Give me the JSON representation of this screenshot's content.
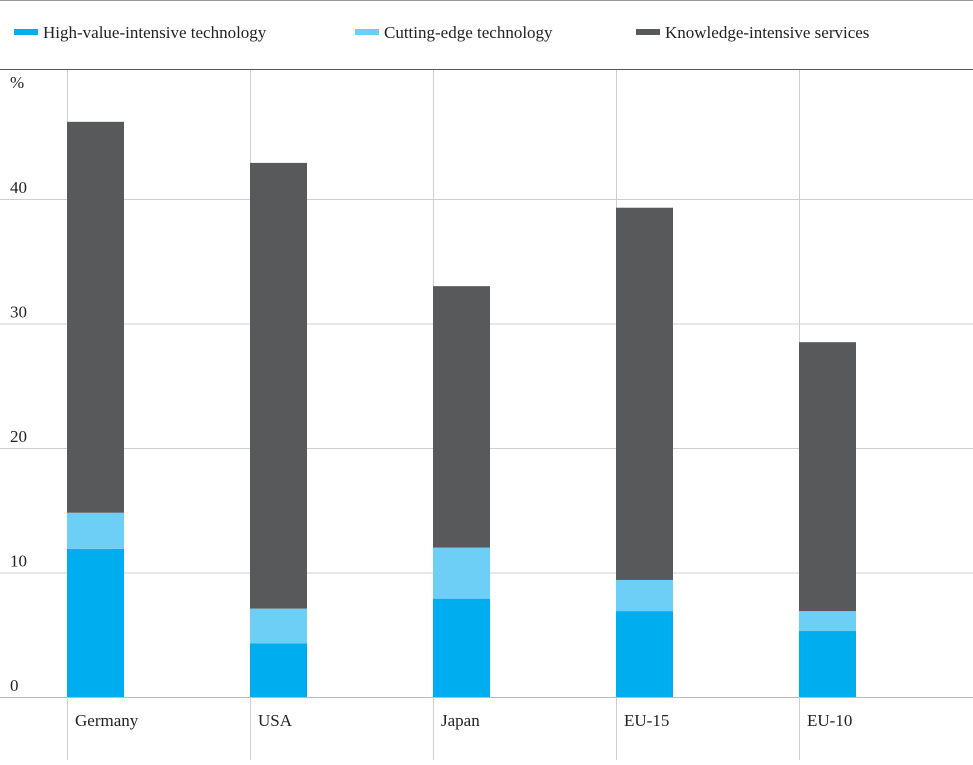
{
  "chart_data": {
    "type": "bar",
    "stacked": true,
    "y_unit_label": "%",
    "categories": [
      "Germany",
      "USA",
      "Japan",
      "EU-15",
      "EU-10"
    ],
    "series": [
      {
        "name": "High-value-intensive technology",
        "color": "#00aeef",
        "values": [
          11.9,
          4.3,
          7.9,
          6.9,
          5.3
        ]
      },
      {
        "name": "Cutting-edge technology",
        "color": "#6dcff6",
        "values": [
          2.9,
          2.8,
          4.1,
          2.5,
          1.6
        ]
      },
      {
        "name": "Knowledge-intensive services",
        "color": "#58595b",
        "values": [
          31.4,
          35.8,
          21.0,
          29.9,
          21.6
        ]
      }
    ],
    "ylim": [
      0,
      50
    ],
    "yticks": [
      0,
      10,
      20,
      30,
      40
    ],
    "grid": true,
    "legend_position": "top"
  }
}
